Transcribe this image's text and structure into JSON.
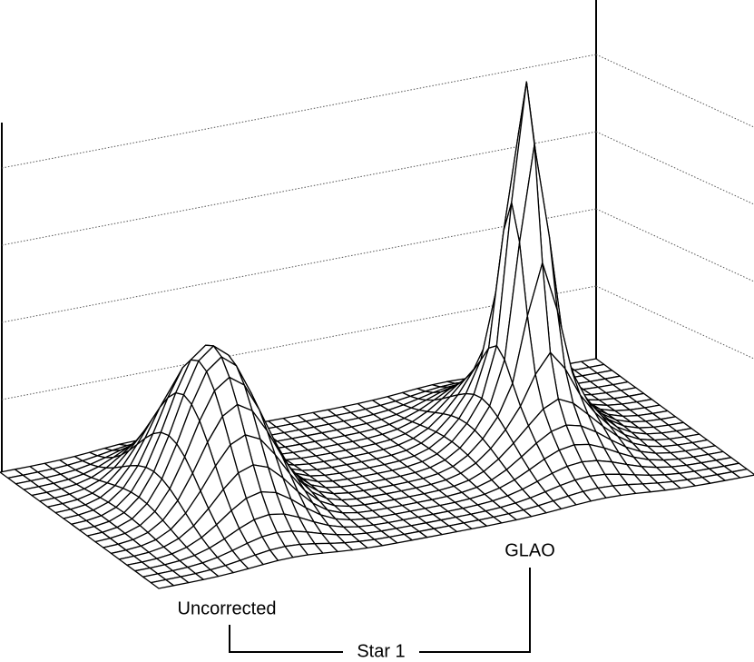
{
  "labels": {
    "uncorrected": "Uncorrected",
    "glao": "GLAO",
    "star": "Star 1"
  }
}
